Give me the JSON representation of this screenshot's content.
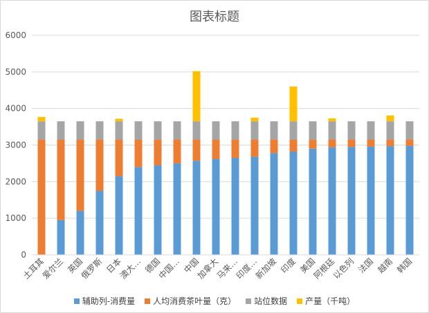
{
  "chart_data": {
    "type": "bar",
    "stacked": true,
    "title": "图表标题",
    "ylim": [
      0,
      6000
    ],
    "yticks": [
      0,
      1000,
      2000,
      3000,
      4000,
      5000,
      6000
    ],
    "categories": [
      "土耳其",
      "爱尔兰",
      "英国",
      "俄罗斯",
      "日本",
      "澳大…",
      "德国",
      "中国…",
      "中国",
      "加拿大",
      "马来…",
      "印度…",
      "新加坡",
      "印度",
      "美国",
      "阿根廷",
      "以色列",
      "法国",
      "越南",
      "韩国"
    ],
    "series": [
      {
        "name": "辅助列-消费量",
        "color": "#5b9bd5",
        "values": [
          0,
          950,
          1200,
          1750,
          2150,
          2400,
          2450,
          2500,
          2570,
          2620,
          2650,
          2680,
          2780,
          2820,
          2900,
          2940,
          2950,
          2960,
          2970,
          2980
        ]
      },
      {
        "name": "人均消费茶叶量（克）",
        "color": "#ed7d31",
        "values": [
          3150,
          2200,
          1950,
          1400,
          1000,
          750,
          700,
          650,
          580,
          530,
          500,
          470,
          370,
          330,
          250,
          210,
          200,
          190,
          180,
          170
        ]
      },
      {
        "name": "站位数据",
        "color": "#a5a5a5",
        "values": [
          500,
          500,
          500,
          500,
          500,
          500,
          500,
          500,
          500,
          500,
          500,
          500,
          500,
          500,
          500,
          500,
          500,
          500,
          500,
          500
        ]
      },
      {
        "name": "产量（千吨）",
        "color": "#ffc000",
        "values": [
          120,
          0,
          0,
          0,
          70,
          0,
          0,
          0,
          1370,
          0,
          0,
          100,
          0,
          950,
          0,
          80,
          0,
          0,
          160,
          0
        ]
      }
    ]
  }
}
